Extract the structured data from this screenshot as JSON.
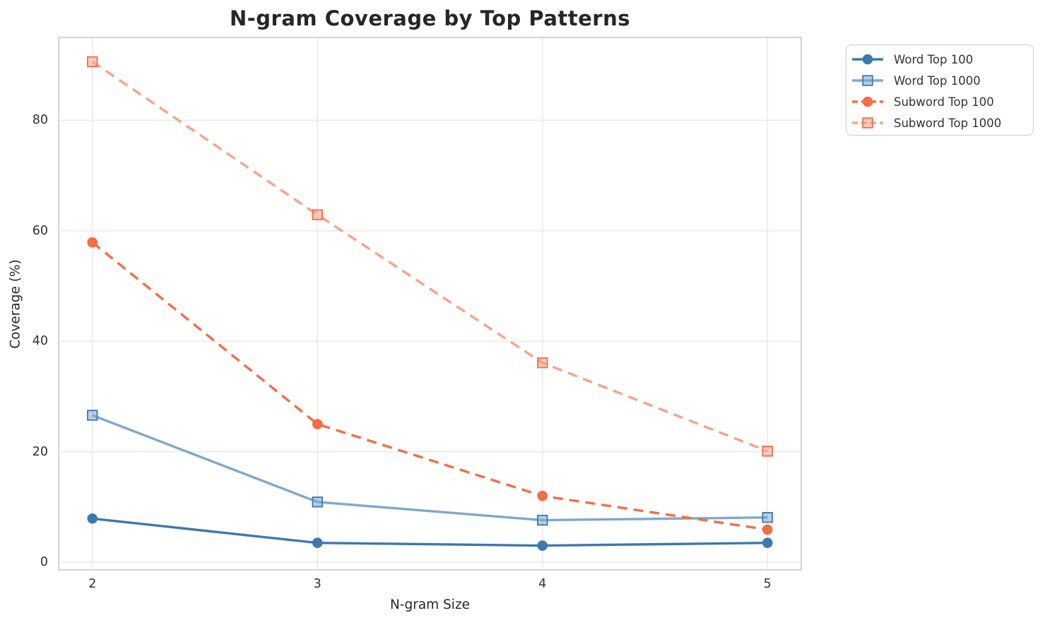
{
  "chart_data": {
    "type": "line",
    "title": "N-gram Coverage by Top Patterns",
    "xlabel": "N-gram Size",
    "ylabel": "Coverage (%)",
    "x": [
      2,
      3,
      4,
      5
    ],
    "xticks": [
      "2",
      "3",
      "4",
      "5"
    ],
    "yticks": [
      "0",
      "20",
      "40",
      "60",
      "80"
    ],
    "ytick_values": [
      0,
      20,
      40,
      60,
      80
    ],
    "xlim": [
      1.85,
      5.15
    ],
    "ylim": [
      -1.4,
      95.0
    ],
    "grid": true,
    "legend_position": "upper right",
    "series": [
      {
        "name": "Word Top 100",
        "values": [
          7.9,
          3.5,
          3.0,
          3.5
        ],
        "color": "#3b79ae",
        "marker_edge": "#3b79ae",
        "marker": "circle",
        "line_style": "solid"
      },
      {
        "name": "Word Top 1000",
        "values": [
          26.6,
          10.9,
          7.6,
          8.1
        ],
        "color": "#7fa8cd",
        "marker_edge": "#3b79ae",
        "marker": "square",
        "line_style": "solid"
      },
      {
        "name": "Subword Top 100",
        "values": [
          57.9,
          25.0,
          12.0,
          5.9
        ],
        "color": "#f76b45",
        "marker_edge": "#f76b45",
        "marker": "circle",
        "line_style": "dashed"
      },
      {
        "name": "Subword Top 1000",
        "values": [
          90.6,
          62.9,
          36.1,
          20.1
        ],
        "color": "#fba186",
        "marker_edge": "#f76b45",
        "marker": "square",
        "line_style": "dashed"
      }
    ],
    "style": {
      "gridline_color": "#e8e8e8",
      "spine_color": "#cfcfcf",
      "background": "#ffffff"
    }
  }
}
